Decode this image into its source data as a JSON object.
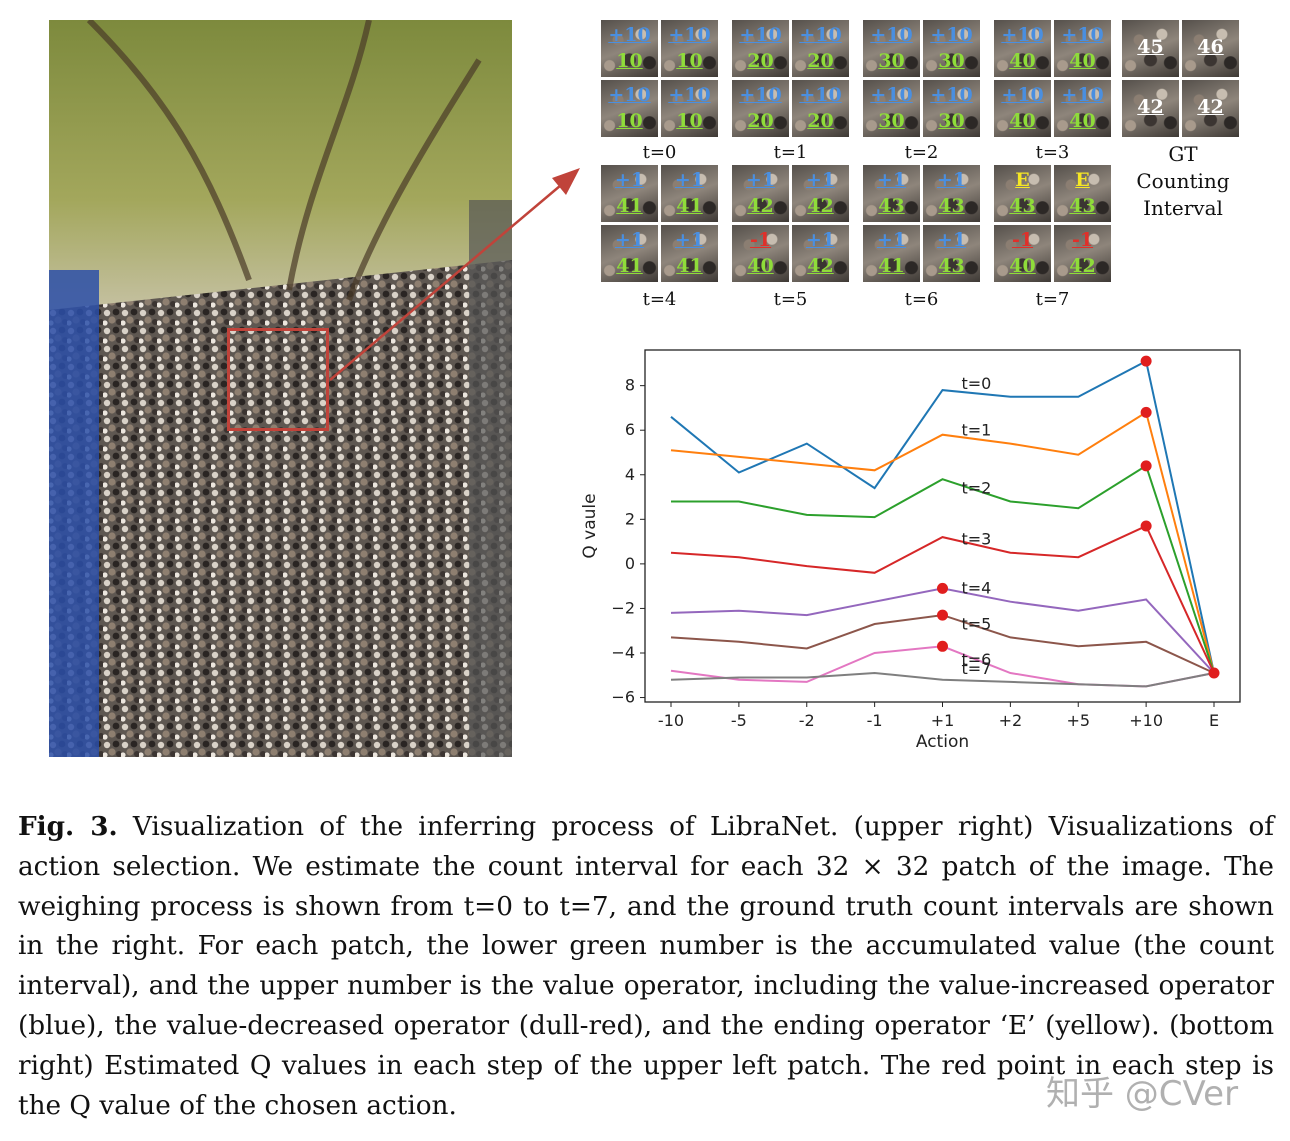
{
  "figure": {
    "grids": [
      {
        "t_label": "t=0",
        "patches": [
          {
            "op": "+10",
            "op_color": "blue",
            "acc": "10"
          },
          {
            "op": "+10",
            "op_color": "blue",
            "acc": "10"
          },
          {
            "op": "+10",
            "op_color": "blue",
            "acc": "10"
          },
          {
            "op": "+10",
            "op_color": "blue",
            "acc": "10"
          }
        ]
      },
      {
        "t_label": "t=1",
        "patches": [
          {
            "op": "+10",
            "op_color": "blue",
            "acc": "20"
          },
          {
            "op": "+10",
            "op_color": "blue",
            "acc": "20"
          },
          {
            "op": "+10",
            "op_color": "blue",
            "acc": "20"
          },
          {
            "op": "+10",
            "op_color": "blue",
            "acc": "20"
          }
        ]
      },
      {
        "t_label": "t=2",
        "patches": [
          {
            "op": "+10",
            "op_color": "blue",
            "acc": "30"
          },
          {
            "op": "+10",
            "op_color": "blue",
            "acc": "30"
          },
          {
            "op": "+10",
            "op_color": "blue",
            "acc": "30"
          },
          {
            "op": "+10",
            "op_color": "blue",
            "acc": "30"
          }
        ]
      },
      {
        "t_label": "t=3",
        "patches": [
          {
            "op": "+10",
            "op_color": "blue",
            "acc": "40"
          },
          {
            "op": "+10",
            "op_color": "blue",
            "acc": "40"
          },
          {
            "op": "+10",
            "op_color": "blue",
            "acc": "40"
          },
          {
            "op": "+10",
            "op_color": "blue",
            "acc": "40"
          }
        ]
      },
      {
        "t_label": "t=4",
        "patches": [
          {
            "op": "+1",
            "op_color": "blue",
            "acc": "41"
          },
          {
            "op": "+1",
            "op_color": "blue",
            "acc": "41"
          },
          {
            "op": "+1",
            "op_color": "blue",
            "acc": "41"
          },
          {
            "op": "+1",
            "op_color": "blue",
            "acc": "41"
          }
        ]
      },
      {
        "t_label": "t=5",
        "patches": [
          {
            "op": "+1",
            "op_color": "blue",
            "acc": "42"
          },
          {
            "op": "+1",
            "op_color": "blue",
            "acc": "42"
          },
          {
            "op": "-1",
            "op_color": "red",
            "acc": "40"
          },
          {
            "op": "+1",
            "op_color": "blue",
            "acc": "42"
          }
        ]
      },
      {
        "t_label": "t=6",
        "patches": [
          {
            "op": "+1",
            "op_color": "blue",
            "acc": "43"
          },
          {
            "op": "+1",
            "op_color": "blue",
            "acc": "43"
          },
          {
            "op": "+1",
            "op_color": "blue",
            "acc": "41"
          },
          {
            "op": "+1",
            "op_color": "blue",
            "acc": "43"
          }
        ]
      },
      {
        "t_label": "t=7",
        "patches": [
          {
            "op": "E",
            "op_color": "yellow",
            "acc": "43"
          },
          {
            "op": "E",
            "op_color": "yellow",
            "acc": "43"
          },
          {
            "op": "-1",
            "op_color": "red",
            "acc": "40"
          },
          {
            "op": "-1",
            "op_color": "red",
            "acc": "42"
          }
        ]
      }
    ],
    "gt": {
      "values": [
        "45",
        "46",
        "42",
        "42"
      ],
      "caption_lines": [
        "GT",
        "Counting",
        "Interval"
      ]
    },
    "colors": {
      "blue": "#4a8fe0",
      "red": "#e0302a",
      "yellow": "#f5e625",
      "green": "#8fdc3a",
      "box": "#c0433a"
    }
  },
  "chart_data": {
    "type": "line",
    "categories": [
      "-10",
      "-5",
      "-2",
      "-1",
      "+1",
      "+2",
      "+5",
      "+10",
      "E"
    ],
    "xlabel": "Action",
    "ylabel": "Q vaule",
    "ylim": [
      -6.2,
      9.6
    ],
    "yticks": [
      -6,
      -4,
      -2,
      0,
      2,
      4,
      6,
      8
    ],
    "grid": false,
    "series": [
      {
        "name": "t=0",
        "color": "#1f77b4",
        "values": [
          6.6,
          4.1,
          5.4,
          3.4,
          7.8,
          7.5,
          7.5,
          9.1,
          -4.9
        ],
        "chosen_index": 7
      },
      {
        "name": "t=1",
        "color": "#ff7f0e",
        "values": [
          5.1,
          4.8,
          4.5,
          4.2,
          5.8,
          5.4,
          4.9,
          6.8,
          -4.9
        ],
        "chosen_index": 7
      },
      {
        "name": "t=2",
        "color": "#2ca02c",
        "values": [
          2.8,
          2.8,
          2.2,
          2.1,
          3.8,
          2.8,
          2.5,
          4.4,
          -4.9
        ],
        "chosen_index": 7
      },
      {
        "name": "t=3",
        "color": "#d62728",
        "values": [
          0.5,
          0.3,
          -0.1,
          -0.4,
          1.2,
          0.5,
          0.3,
          1.7,
          -4.9
        ],
        "chosen_index": 7
      },
      {
        "name": "t=4",
        "color": "#9467bd",
        "values": [
          -2.2,
          -2.1,
          -2.3,
          -1.7,
          -1.1,
          -1.7,
          -2.1,
          -1.6,
          -4.9
        ],
        "chosen_index": 4
      },
      {
        "name": "t=5",
        "color": "#8c564b",
        "values": [
          -3.3,
          -3.5,
          -3.8,
          -2.7,
          -2.3,
          -3.3,
          -3.7,
          -3.5,
          -4.9
        ],
        "chosen_index": 4
      },
      {
        "name": "t=6",
        "color": "#e377c2",
        "values": [
          -4.8,
          -5.2,
          -5.3,
          -4.0,
          -3.7,
          -4.9,
          -5.4,
          -5.5,
          -4.9
        ],
        "chosen_index": 4
      },
      {
        "name": "t=7",
        "color": "#7f7f7f",
        "values": [
          -5.2,
          -5.1,
          -5.1,
          -4.9,
          -5.2,
          -5.3,
          -5.4,
          -5.5,
          -4.9
        ],
        "chosen_index": 8
      }
    ],
    "series_labels_at": [
      5,
      5,
      5,
      5,
      5,
      5,
      5,
      5
    ]
  },
  "caption": {
    "fig_label": "Fig. 3.",
    "text": "Visualization of the inferring process of LibraNet. (upper right) Visualizations of action selection. We estimate the count interval for each 32 × 32 patch of the image. The weighing process is shown from t=0 to t=7, and the ground truth count intervals are shown in the right. For each patch, the lower green number is the accumulated value (the count interval), and the upper number is the value operator, including the value-increased operator (blue), the value-decreased operator (dull-red), and the ending operator ‘E’ (yellow). (bottom right) Estimated Q values in each step of the upper left patch. The red point in each step is the Q value of the chosen action."
  },
  "watermark": "知乎 @CVer"
}
